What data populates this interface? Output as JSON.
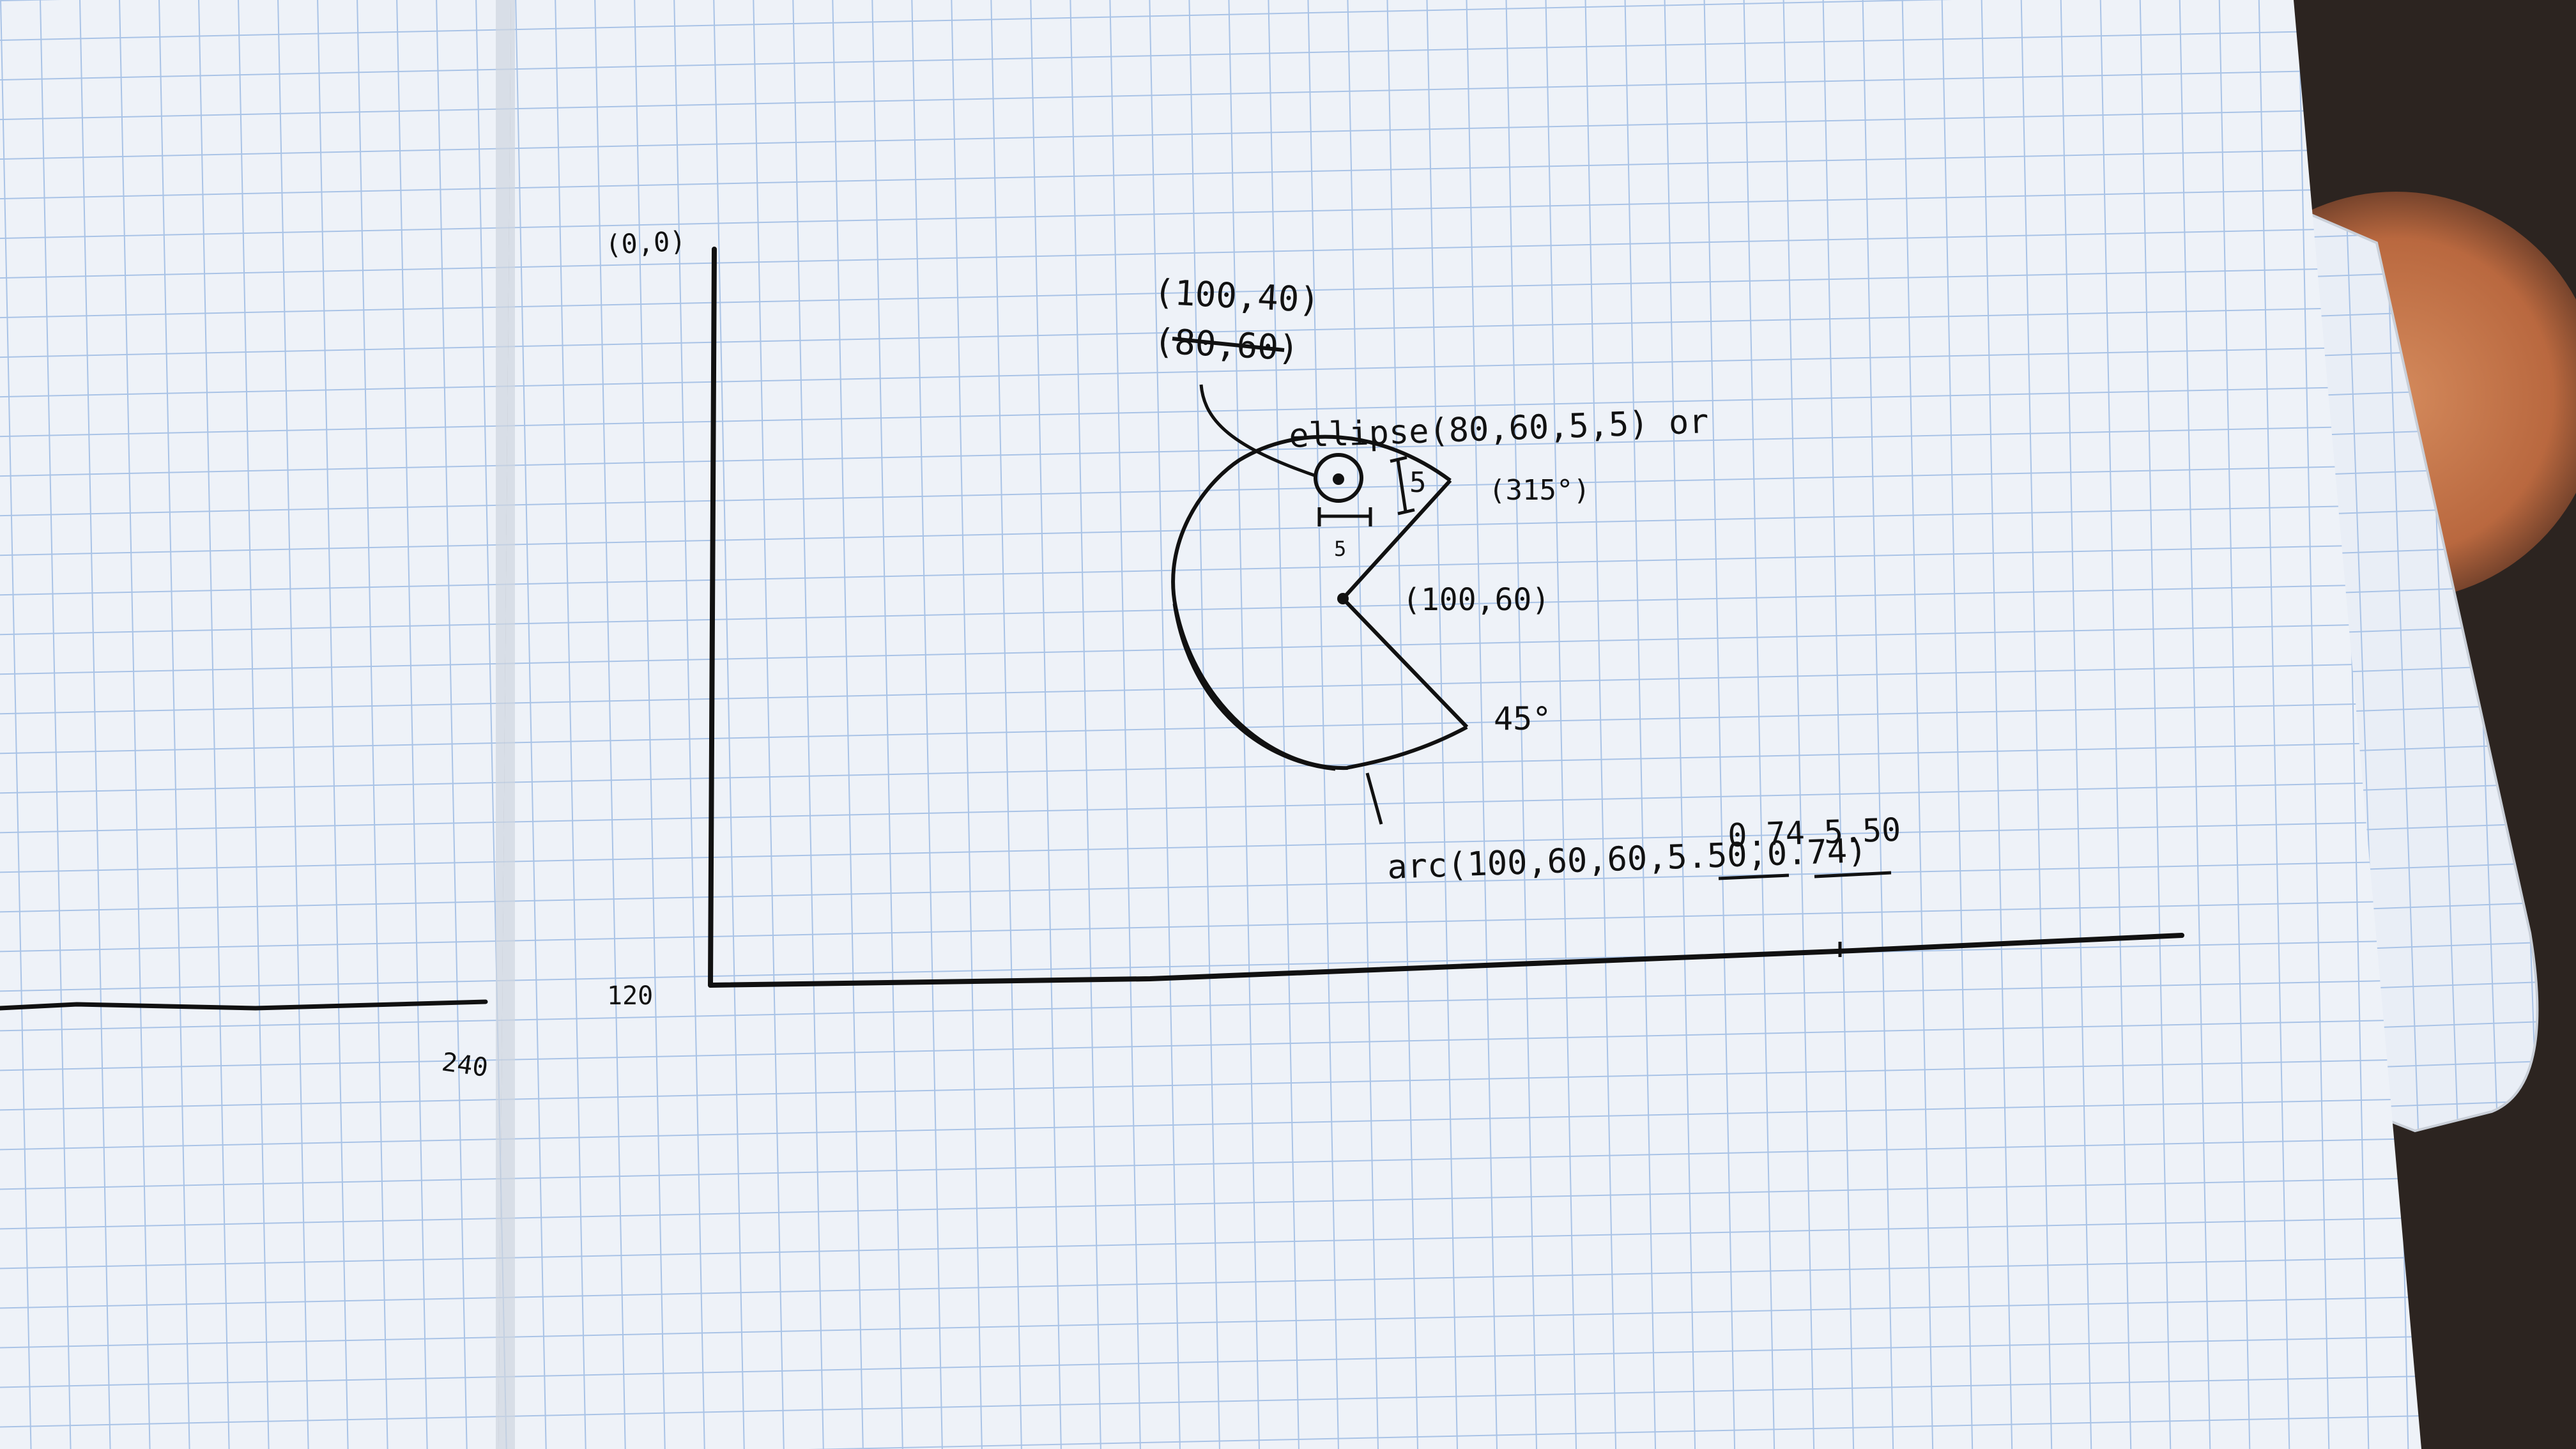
{
  "photo": {
    "subject": "graph-paper notebook sketch",
    "colors": {
      "paper": "#eef2f8",
      "grid_line": "#a9c3e6",
      "ink": "#111111",
      "background_cloth": "#c8784e",
      "background_dark": "#2c2420"
    }
  },
  "sketch": {
    "origin_label": "(0,0)",
    "y_max_label": "120",
    "x_max_label": "240",
    "upper_point_label": "(100,40)",
    "crossed_point_label": "(80,60)",
    "ellipse_label": "ellipse(80,60,5,5) or",
    "size_label_vertical": "5",
    "size_label_horizontal": "5",
    "angle_top_label": "(315°)",
    "center_label": "(100,60)",
    "angle_bottom_label": "45°",
    "arc_values_label": "0.74 5.50",
    "arc_label": "arc(100,60,60,5.50,0.74)"
  }
}
